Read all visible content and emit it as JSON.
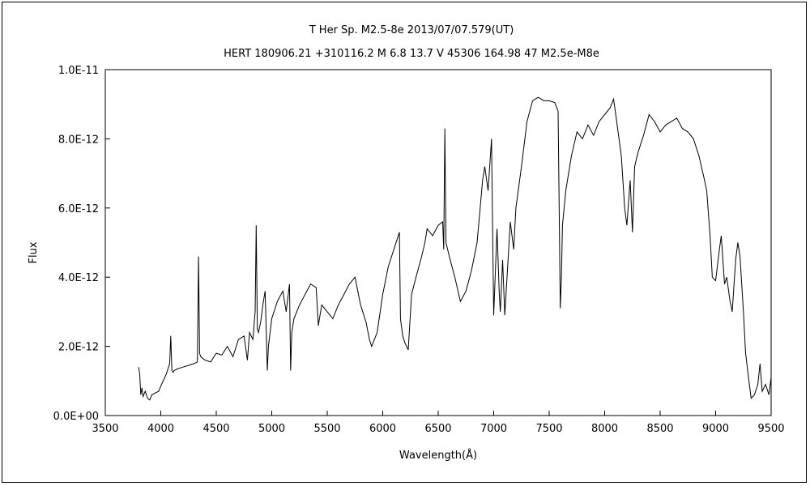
{
  "chart_data": {
    "type": "line",
    "title": "T Her    Sp. M2.5-8e    2013/07/07.579(UT)",
    "subtitle": "HERT 180906.21 +310116.2  M 6.8 13.7 V 45306 164.98 47 M2.5e-M8e",
    "xlabel": "Wavelength(Å)",
    "ylabel": "Flux",
    "xlim": [
      3500,
      9500
    ],
    "ylim": [
      0,
      1e-11
    ],
    "x_ticks": [
      3500,
      4000,
      4500,
      5000,
      5500,
      6000,
      6500,
      7000,
      7500,
      8000,
      8500,
      9000,
      9500
    ],
    "x_tick_labels": [
      "3500",
      "4000",
      "4500",
      "5000",
      "5500",
      "6000",
      "6500",
      "7000",
      "7500",
      "8000",
      "8500",
      "9000",
      "9500"
    ],
    "y_ticks": [
      0,
      2e-12,
      4e-12,
      6e-12,
      8e-12,
      1e-11
    ],
    "y_tick_labels": [
      "0.0E+00",
      "2.0E-12",
      "4.0E-12",
      "6.0E-12",
      "8.0E-12",
      "1.0E-11"
    ],
    "grid": false,
    "legend": "none",
    "line_color": "#000000",
    "series": [
      {
        "x": [
          3800,
          3810,
          3820,
          3830,
          3840,
          3860,
          3880,
          3900,
          3920,
          3950,
          3980,
          4000,
          4050,
          4080,
          4090,
          4100,
          4110,
          4120,
          4150,
          4200,
          4250,
          4300,
          4330,
          4340,
          4350,
          4360,
          4400,
          4450,
          4500,
          4550,
          4600,
          4650,
          4700,
          4750,
          4780,
          4800,
          4830,
          4850,
          4860,
          4870,
          4880,
          4900,
          4920,
          4940,
          4960,
          4970,
          5000,
          5050,
          5100,
          5130,
          5160,
          5170,
          5180,
          5200,
          5250,
          5300,
          5350,
          5400,
          5420,
          5450,
          5500,
          5550,
          5600,
          5650,
          5700,
          5750,
          5800,
          5850,
          5880,
          5900,
          5950,
          6000,
          6050,
          6100,
          6150,
          6160,
          6180,
          6200,
          6230,
          6260,
          6300,
          6350,
          6380,
          6400,
          6450,
          6500,
          6540,
          6550,
          6560,
          6570,
          6600,
          6650,
          6700,
          6750,
          6800,
          6850,
          6900,
          6920,
          6950,
          6980,
          7000,
          7030,
          7050,
          7060,
          7080,
          7100,
          7150,
          7180,
          7200,
          7250,
          7300,
          7350,
          7400,
          7430,
          7450,
          7500,
          7550,
          7580,
          7600,
          7610,
          7620,
          7650,
          7700,
          7750,
          7800,
          7850,
          7900,
          7950,
          8000,
          8050,
          8080,
          8100,
          8150,
          8180,
          8200,
          8230,
          8250,
          8270,
          8300,
          8330,
          8350,
          8400,
          8450,
          8500,
          8550,
          8600,
          8650,
          8700,
          8750,
          8800,
          8850,
          8900,
          8920,
          8950,
          8970,
          9000,
          9030,
          9050,
          9080,
          9100,
          9130,
          9150,
          9180,
          9200,
          9220,
          9250,
          9270,
          9300,
          9320,
          9350,
          9380,
          9400,
          9420,
          9450,
          9480,
          9500
        ],
        "values": [
          1.4e-12,
          1.2e-12,
          6e-13,
          8e-13,
          5.5e-13,
          7e-13,
          5e-13,
          4.5e-13,
          6e-13,
          6.5e-13,
          7e-13,
          8.5e-13,
          1.2e-12,
          1.5e-12,
          2.3e-12,
          1.3e-12,
          1.25e-12,
          1.3e-12,
          1.35e-12,
          1.4e-12,
          1.45e-12,
          1.5e-12,
          1.55e-12,
          4.6e-12,
          1.8e-12,
          1.7e-12,
          1.6e-12,
          1.55e-12,
          1.8e-12,
          1.75e-12,
          2e-12,
          1.7e-12,
          2.2e-12,
          2.3e-12,
          1.6e-12,
          2.4e-12,
          2.2e-12,
          3e-12,
          5.5e-12,
          2.5e-12,
          2.4e-12,
          2.7e-12,
          3.2e-12,
          3.6e-12,
          1.3e-12,
          2e-12,
          2.8e-12,
          3.3e-12,
          3.6e-12,
          3e-12,
          3.8e-12,
          1.3e-12,
          2.4e-12,
          2.8e-12,
          3.2e-12,
          3.5e-12,
          3.8e-12,
          3.7e-12,
          2.6e-12,
          3.2e-12,
          3e-12,
          2.8e-12,
          3.2e-12,
          3.5e-12,
          3.8e-12,
          4e-12,
          3.2e-12,
          2.7e-12,
          2.2e-12,
          2e-12,
          2.4e-12,
          3.5e-12,
          4.3e-12,
          4.8e-12,
          5.3e-12,
          2.8e-12,
          2.3e-12,
          2.1e-12,
          1.9e-12,
          3.5e-12,
          4e-12,
          4.6e-12,
          5e-12,
          5.4e-12,
          5.2e-12,
          5.5e-12,
          5.6e-12,
          4.8e-12,
          8.3e-12,
          5e-12,
          4.6e-12,
          4e-12,
          3.3e-12,
          3.6e-12,
          4.2e-12,
          5e-12,
          6.8e-12,
          7.2e-12,
          6.5e-12,
          8e-12,
          2.9e-12,
          5.4e-12,
          3.5e-12,
          3e-12,
          4.5e-12,
          2.9e-12,
          5.6e-12,
          4.8e-12,
          6e-12,
          7.2e-12,
          8.5e-12,
          9.1e-12,
          9.2e-12,
          9.15e-12,
          9.1e-12,
          9.1e-12,
          9.05e-12,
          8.8e-12,
          3.1e-12,
          4e-12,
          5.5e-12,
          6.5e-12,
          7.5e-12,
          8.2e-12,
          8e-12,
          8.4e-12,
          8.1e-12,
          8.5e-12,
          8.7e-12,
          8.9e-12,
          9.15e-12,
          8.7e-12,
          7.5e-12,
          6e-12,
          5.5e-12,
          6.8e-12,
          5.3e-12,
          7.2e-12,
          7.6e-12,
          7.9e-12,
          8.1e-12,
          8.7e-12,
          8.5e-12,
          8.2e-12,
          8.4e-12,
          8.5e-12,
          8.6e-12,
          8.3e-12,
          8.2e-12,
          8e-12,
          7.5e-12,
          6.8e-12,
          6.5e-12,
          5.2e-12,
          4e-12,
          3.9e-12,
          4.7e-12,
          5.2e-12,
          3.8e-12,
          4e-12,
          3.3e-12,
          3e-12,
          4.5e-12,
          5e-12,
          4.6e-12,
          3e-12,
          1.8e-12,
          1e-12,
          5e-13,
          6e-13,
          9e-13,
          1.5e-12,
          7e-13,
          9e-13,
          6e-13,
          1.1e-12
        ]
      }
    ]
  }
}
